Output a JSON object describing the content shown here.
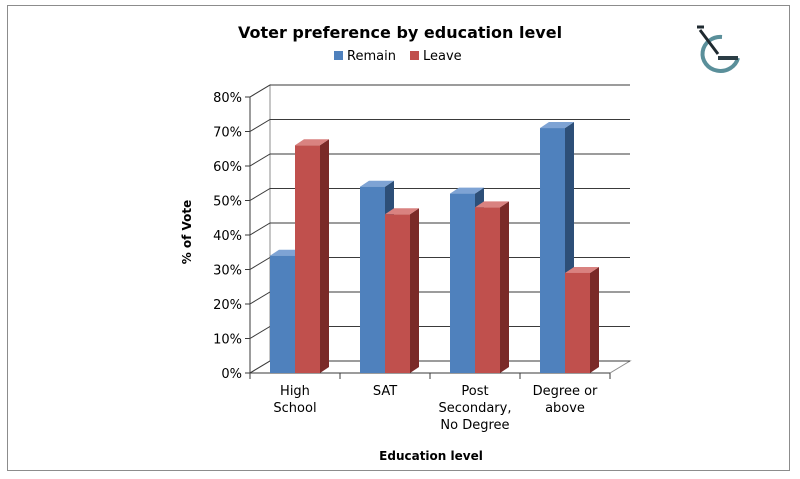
{
  "chart_data": {
    "type": "bar",
    "title": "Voter preference by education level",
    "xlabel": "Education level",
    "ylabel": "% of Vote",
    "categories": [
      [
        "High",
        "School"
      ],
      [
        "SAT"
      ],
      [
        "Post",
        "Secondary,",
        "No Degree"
      ],
      [
        "Degree or",
        "above"
      ]
    ],
    "series": [
      {
        "name": "Remain",
        "values": [
          34,
          54,
          52,
          71
        ],
        "color": "#4f81bd",
        "dark": "#2d4f78",
        "light": "#7ea3d4"
      },
      {
        "name": "Leave",
        "values": [
          66,
          46,
          48,
          29
        ],
        "color": "#c0504d",
        "dark": "#7a2a28",
        "light": "#d98280"
      }
    ],
    "ylim": [
      0,
      80
    ],
    "yticks": [
      "0%",
      "10%",
      "20%",
      "30%",
      "40%",
      "50%",
      "60%",
      "70%",
      "80%"
    ],
    "grid": true,
    "legend": "top"
  },
  "logo": {
    "icon": "stylized-g-logo-icon"
  }
}
